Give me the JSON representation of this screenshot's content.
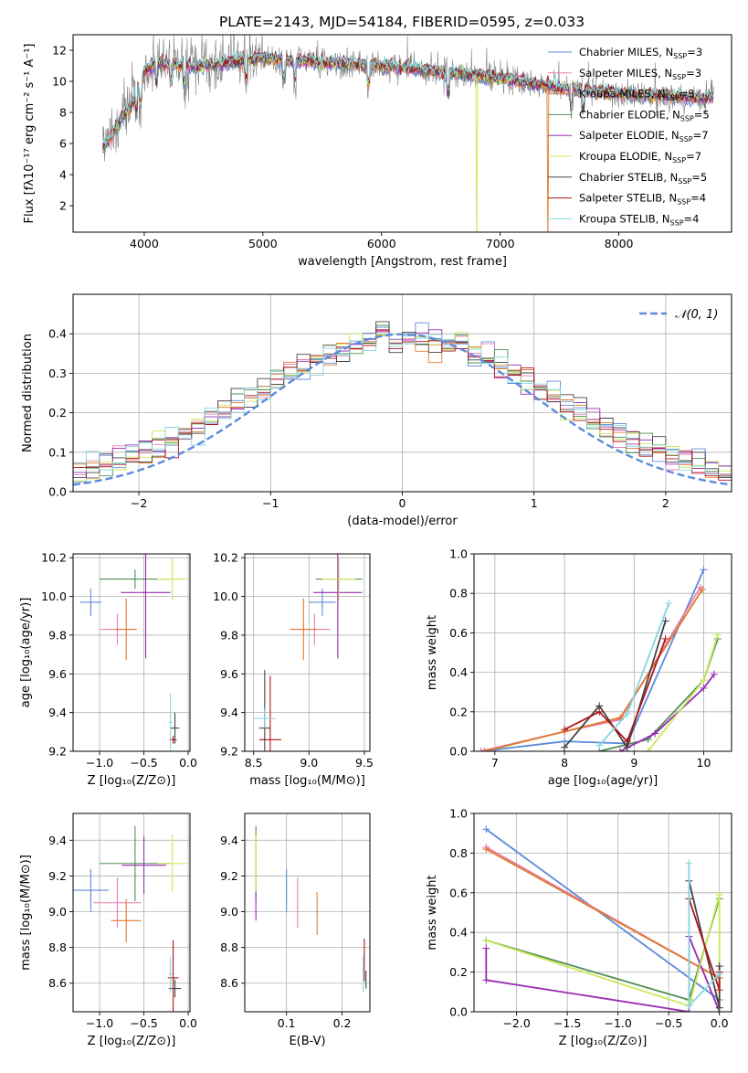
{
  "figure": {
    "title": "PLATE=2143, MJD=54184, FIBERID=0595, z=0.033"
  },
  "series_colors": [
    "#5b8bd9",
    "#e77fb0",
    "#e07a2c",
    "#4f8f56",
    "#9a2cb3",
    "#c9e85a",
    "#444444",
    "#b0151c",
    "#86d6de"
  ],
  "chart_data": [
    {
      "id": "spectrum",
      "type": "line",
      "title": "PLATE=2143, MJD=54184, FIBERID=0595, z=0.033",
      "xlabel": "wavelength [Angstrom, rest frame]",
      "ylabel": "Flux [fλ10⁻¹⁷ erg cm⁻² s⁻¹ A⁻¹]",
      "xlim": [
        3400,
        8950
      ],
      "ylim": [
        0.3,
        13
      ],
      "xticks": [
        4000,
        5000,
        6000,
        7000,
        8000
      ],
      "yticks": [
        2,
        4,
        6,
        8,
        10,
        12
      ],
      "grid": false,
      "legend_position": "top-right",
      "data_range": [
        3650,
        8800
      ],
      "continuum": {
        "x": [
          3650,
          3700,
          3800,
          3900,
          4000,
          4100,
          4300,
          4500,
          4800,
          5000,
          5500,
          6000,
          6500,
          7000,
          7500,
          8000,
          8500,
          8800
        ],
        "y": [
          5.8,
          6.2,
          7.5,
          8.5,
          10.6,
          11.2,
          11.1,
          11.0,
          11.3,
          11.5,
          11.2,
          11.0,
          10.6,
          10.2,
          9.6,
          9.2,
          9.0,
          8.9
        ]
      },
      "observed_color": "#808080",
      "legend": [
        {
          "name": "Chabrier MILES, N_SSP=3",
          "label": "Chabrier MILES, N",
          "sub": "SSP",
          "suffix": "=3"
        },
        {
          "name": "Salpeter MILES, N_SSP=3",
          "label": "Salpeter MILES, N",
          "sub": "SSP",
          "suffix": "=3"
        },
        {
          "name": "Kroupa MILES, N_SSP=3",
          "label": "Kroupa MILES, N",
          "sub": "SSP",
          "suffix": "=3"
        },
        {
          "name": "Chabrier ELODIE, N_SSP=5",
          "label": "Chabrier ELODIE, N",
          "sub": "SSP",
          "suffix": "=5"
        },
        {
          "name": "Salpeter ELODIE, N_SSP=7",
          "label": "Salpeter ELODIE, N",
          "sub": "SSP",
          "suffix": "=7"
        },
        {
          "name": "Kroupa ELODIE, N_SSP=7",
          "label": "Kroupa ELODIE, N",
          "sub": "SSP",
          "suffix": "=7"
        },
        {
          "name": "Chabrier STELIB, N_SSP=5",
          "label": "Chabrier STELIB, N",
          "sub": "SSP",
          "suffix": "=5"
        },
        {
          "name": "Salpeter STELIB, N_SSP=4",
          "label": "Salpeter STELIB, N",
          "sub": "SSP",
          "suffix": "=4"
        },
        {
          "name": "Kroupa STELIB, N_SSP=4",
          "label": "Kroupa STELIB, N",
          "sub": "SSP",
          "suffix": "=4"
        }
      ]
    },
    {
      "id": "residuals",
      "type": "step",
      "xlabel": "(data-model)/error",
      "ylabel": "Normed distribution",
      "xlim": [
        -2.5,
        2.5
      ],
      "ylim": [
        0,
        0.5
      ],
      "xticks": [
        -2,
        -1,
        0,
        1,
        2
      ],
      "xtick_labels": [
        "−2",
        "−1",
        "0",
        "1",
        "2"
      ],
      "yticks": [
        0.0,
        0.1,
        0.2,
        0.3,
        0.4
      ],
      "ytick_labels": [
        "0.0",
        "0.1",
        "0.2",
        "0.3",
        "0.4"
      ],
      "grid": true,
      "legend_position": "top-right",
      "reference_curve": {
        "name": "N(0,1)",
        "label": "𝒩(0, 1)",
        "mean": 0,
        "sigma": 1,
        "color": "#5b8bd9"
      }
    },
    {
      "id": "age-vs-Z",
      "type": "errorbar",
      "xlabel": "Z [log₁₀(Z/Z⊙)]",
      "ylabel": "age  [log₁₀(age/yr)]",
      "xlim": [
        -1.3,
        0.02
      ],
      "ylim": [
        9.2,
        10.22
      ],
      "xticks": [
        -1.0,
        -0.5,
        0.0
      ],
      "xtick_labels": [
        "−1.0",
        "−0.5",
        "0.0"
      ],
      "yticks": [
        9.2,
        9.4,
        9.6,
        9.8,
        10.0,
        10.2
      ],
      "ytick_labels": [
        "9.2",
        "9.4",
        "9.6",
        "9.8",
        "10.0",
        "10.2"
      ],
      "grid": true,
      "points": [
        {
          "x": -1.1,
          "xerr": 0.12,
          "y": 9.97,
          "yerr": 0.07
        },
        {
          "x": -0.8,
          "xerr": 0.2,
          "y": 9.83,
          "yerr": 0.08
        },
        {
          "x": -0.7,
          "xerr": 0.12,
          "y": 9.83,
          "yerr": 0.16
        },
        {
          "x": -0.6,
          "xerr": 0.4,
          "y": 10.09,
          "yerr": 0.05
        },
        {
          "x": -0.48,
          "xerr": 0.28,
          "y": 10.02,
          "yerr": 0.34
        },
        {
          "x": -0.18,
          "xerr": 0.17,
          "y": 10.09,
          "yerr": 0.11
        },
        {
          "x": -0.15,
          "xerr": 0.05,
          "y": 9.32,
          "yerr": 0.08
        },
        {
          "x": -0.17,
          "xerr": 0.04,
          "y": 9.26,
          "yerr": 0.02
        },
        {
          "x": -0.2,
          "xerr": 0.02,
          "y": 9.35,
          "yerr": 0.15
        }
      ]
    },
    {
      "id": "age-vs-mass",
      "type": "errorbar",
      "xlabel": "mass [log₁₀(M/M⊙)]",
      "ylabel": "",
      "xlim": [
        8.42,
        9.55
      ],
      "ylim": [
        9.2,
        10.22
      ],
      "xticks": [
        8.5,
        9.0,
        9.5
      ],
      "xtick_labels": [
        "8.5",
        "9.0",
        "9.5"
      ],
      "yticks": [
        9.2,
        9.4,
        9.6,
        9.8,
        10.0,
        10.2
      ],
      "ytick_labels": [
        "9.2",
        "9.4",
        "9.6",
        "9.8",
        "10.0",
        "10.2"
      ],
      "grid": true,
      "points": [
        {
          "x": 9.12,
          "xerr": 0.12,
          "y": 9.97,
          "yerr": 0.07
        },
        {
          "x": 9.05,
          "xerr": 0.14,
          "y": 9.83,
          "yerr": 0.08
        },
        {
          "x": 8.95,
          "xerr": 0.12,
          "y": 9.83,
          "yerr": 0.16
        },
        {
          "x": 9.27,
          "xerr": 0.21,
          "y": 10.09,
          "yerr": 0.05
        },
        {
          "x": 9.26,
          "xerr": 0.22,
          "y": 10.02,
          "yerr": 0.34
        },
        {
          "x": 9.27,
          "xerr": 0.15,
          "y": 10.09,
          "yerr": 0.11
        },
        {
          "x": 8.6,
          "xerr": 0.05,
          "y": 9.32,
          "yerr": 0.3
        },
        {
          "x": 8.65,
          "xerr": 0.1,
          "y": 9.26,
          "yerr": 0.33
        },
        {
          "x": 8.6,
          "xerr": 0.1,
          "y": 9.37,
          "yerr": 0.05
        }
      ]
    },
    {
      "id": "massweight-vs-age",
      "type": "line",
      "xlabel": "age  [log₁₀(age/yr)]",
      "ylabel": "mass weight",
      "xlim": [
        6.7,
        10.4
      ],
      "ylim": [
        0,
        1.0
      ],
      "xticks": [
        7,
        8,
        9,
        10
      ],
      "xtick_labels": [
        "7",
        "8",
        "9",
        "10"
      ],
      "yticks": [
        0.0,
        0.2,
        0.4,
        0.6,
        0.8,
        1.0
      ],
      "ytick_labels": [
        "0.0",
        "0.2",
        "0.4",
        "0.6",
        "0.8",
        "1.0"
      ],
      "grid": true,
      "series": [
        {
          "x": [
            6.8,
            8.0,
            8.9,
            10.0
          ],
          "y": [
            0.0,
            0.05,
            0.04,
            0.92
          ]
        },
        {
          "x": [
            6.8,
            8.0,
            8.8,
            9.95
          ],
          "y": [
            0.0,
            0.1,
            0.16,
            0.83
          ]
        },
        {
          "x": [
            6.85,
            8.0,
            8.8,
            9.98
          ],
          "y": [
            0.0,
            0.1,
            0.17,
            0.82
          ]
        },
        {
          "x": [
            8.5,
            9.2,
            10.0,
            10.2
          ],
          "y": [
            0.0,
            0.06,
            0.36,
            0.57
          ]
        },
        {
          "x": [
            8.8,
            9.3,
            10.0,
            10.15
          ],
          "y": [
            0.0,
            0.09,
            0.32,
            0.39
          ]
        },
        {
          "x": [
            9.2,
            10.0,
            10.2
          ],
          "y": [
            0.0,
            0.36,
            0.59
          ]
        },
        {
          "x": [
            8.0,
            8.5,
            8.9,
            9.45
          ],
          "y": [
            0.02,
            0.23,
            0.02,
            0.66
          ]
        },
        {
          "x": [
            8.0,
            8.5,
            8.9,
            9.45
          ],
          "y": [
            0.11,
            0.2,
            0.05,
            0.57
          ]
        },
        {
          "x": [
            8.5,
            8.9,
            9.5
          ],
          "y": [
            0.03,
            0.19,
            0.75
          ]
        }
      ]
    },
    {
      "id": "mass-vs-Z",
      "type": "errorbar",
      "xlabel": "Z [log₁₀(Z/Z⊙)]",
      "ylabel": "mass [log₁₀(M/M⊙)]",
      "xlim": [
        -1.3,
        0.02
      ],
      "ylim": [
        8.44,
        9.55
      ],
      "xticks": [
        -1.0,
        -0.5,
        0.0
      ],
      "xtick_labels": [
        "−1.0",
        "−0.5",
        "0.0"
      ],
      "yticks": [
        8.6,
        8.8,
        9.0,
        9.2,
        9.4
      ],
      "ytick_labels": [
        "8.6",
        "8.8",
        "9.0",
        "9.2",
        "9.4"
      ],
      "grid": true,
      "points": [
        {
          "x": -1.1,
          "xerr": 0.2,
          "y": 9.12,
          "yerr": 0.12
        },
        {
          "x": -0.8,
          "xerr": 0.27,
          "y": 9.05,
          "yerr": 0.14
        },
        {
          "x": -0.7,
          "xerr": 0.17,
          "y": 8.95,
          "yerr": 0.12
        },
        {
          "x": -0.6,
          "xerr": 0.4,
          "y": 9.27,
          "yerr": 0.21
        },
        {
          "x": -0.5,
          "xerr": 0.25,
          "y": 9.26,
          "yerr": 0.16
        },
        {
          "x": -0.18,
          "xerr": 0.17,
          "y": 9.27,
          "yerr": 0.16
        },
        {
          "x": -0.15,
          "xerr": 0.07,
          "y": 8.57,
          "yerr": 0.05
        },
        {
          "x": -0.17,
          "xerr": 0.06,
          "y": 8.63,
          "yerr": 0.21
        },
        {
          "x": -0.2,
          "xerr": 0.02,
          "y": 8.65,
          "yerr": 0.1
        }
      ]
    },
    {
      "id": "mass-vs-EBV",
      "type": "errorbar",
      "xlabel": "E(B-V)",
      "ylabel": "",
      "xlim": [
        0.025,
        0.25
      ],
      "ylim": [
        8.44,
        9.55
      ],
      "xticks": [
        0.1,
        0.2
      ],
      "xtick_labels": [
        "0.1",
        "0.2"
      ],
      "yticks": [
        8.6,
        8.8,
        9.0,
        9.2,
        9.4
      ],
      "ytick_labels": [
        "8.6",
        "8.8",
        "9.0",
        "9.2",
        "9.4"
      ],
      "grid": true,
      "points": [
        {
          "x": 0.1,
          "y": 9.12,
          "yerr": 0.12
        },
        {
          "x": 0.12,
          "y": 9.05,
          "yerr": 0.14
        },
        {
          "x": 0.155,
          "y": 8.99,
          "yerr": 0.12
        },
        {
          "x": 0.045,
          "y": 9.27,
          "yerr": 0.21
        },
        {
          "x": 0.045,
          "y": 9.05,
          "yerr": 0.1
        },
        {
          "x": 0.045,
          "y": 9.27,
          "yerr": 0.16
        },
        {
          "x": 0.243,
          "y": 8.62,
          "yerr": 0.05
        },
        {
          "x": 0.24,
          "y": 8.73,
          "yerr": 0.12
        },
        {
          "x": 0.238,
          "y": 8.65,
          "yerr": 0.1
        }
      ]
    },
    {
      "id": "massweight-vs-Z",
      "type": "line",
      "xlabel": "Z [log₁₀(Z/Z⊙)]",
      "ylabel": "mass weight",
      "xlim": [
        -2.42,
        0.12
      ],
      "ylim": [
        0,
        1.0
      ],
      "xticks": [
        -2.0,
        -1.5,
        -1.0,
        -0.5,
        0.0
      ],
      "xtick_labels": [
        "−2.0",
        "−1.5",
        "−1.0",
        "−0.5",
        "0.0"
      ],
      "yticks": [
        0.0,
        0.2,
        0.4,
        0.6,
        0.8,
        1.0
      ],
      "ytick_labels": [
        "0.0",
        "0.2",
        "0.4",
        "0.6",
        "0.8",
        "1.0"
      ],
      "grid": true,
      "series": [
        {
          "x": [
            -2.3,
            0.0
          ],
          "y": [
            0.92,
            0.06
          ]
        },
        {
          "x": [
            -2.3,
            0.0
          ],
          "y": [
            0.83,
            0.17
          ]
        },
        {
          "x": [
            -2.3,
            0.0
          ],
          "y": [
            0.82,
            0.17
          ]
        },
        {
          "x": [
            -2.3,
            -0.3,
            0.0
          ],
          "y": [
            0.36,
            0.06,
            0.57
          ]
        },
        {
          "x": [
            -2.3,
            -2.3,
            -0.3,
            -0.3,
            0.0
          ],
          "y": [
            0.32,
            0.16,
            0.0,
            0.38,
            0.0
          ]
        },
        {
          "x": [
            -2.3,
            -0.3,
            0.0,
            0.0
          ],
          "y": [
            0.36,
            0.03,
            0.59,
            0.0
          ]
        },
        {
          "x": [
            -0.3,
            0.0,
            0.0
          ],
          "y": [
            0.66,
            0.02,
            0.23
          ]
        },
        {
          "x": [
            -0.3,
            0.0,
            0.0
          ],
          "y": [
            0.57,
            0.11,
            0.2
          ]
        },
        {
          "x": [
            -0.3,
            -0.3,
            0.0
          ],
          "y": [
            0.75,
            0.03,
            0.19
          ]
        }
      ]
    }
  ]
}
